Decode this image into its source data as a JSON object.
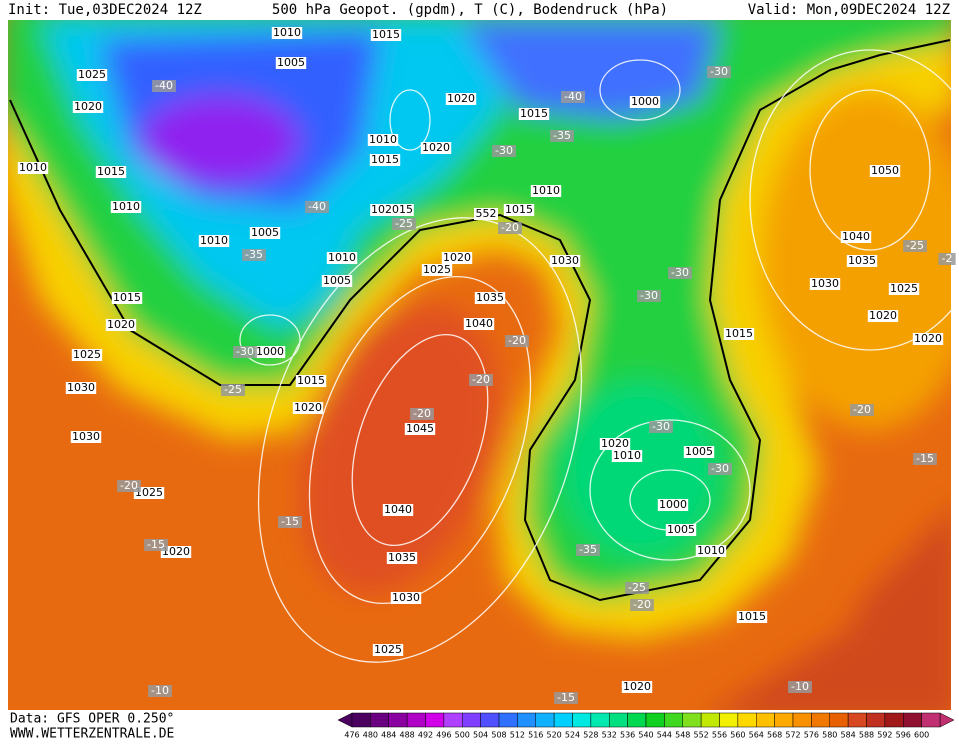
{
  "header": {
    "init": "Init: Tue,03DEC2024 12Z",
    "title": "500 hPa Geopot. (gpdm), T (C), Bodendruck (hPa)",
    "valid": "Valid: Mon,09DEC2024 12Z"
  },
  "map": {
    "pressure_labels": [
      "1010",
      "1015",
      "1005",
      "1025",
      "1020",
      "1010",
      "1015",
      "1010",
      "1010",
      "1005",
      "1015",
      "1020",
      "1025",
      "1030",
      "1030",
      "1025",
      "1020",
      "1010",
      "1015",
      "1020",
      "1020",
      "1015",
      "1000",
      "102015",
      "1010",
      "1015",
      "1020",
      "1025",
      "1010",
      "1005",
      "1030",
      "1035",
      "1040",
      "1000",
      "1015",
      "1020",
      "1045",
      "1040",
      "1035",
      "1030",
      "1025",
      "1020",
      "1015",
      "1010",
      "1005",
      "1000",
      "1005",
      "1010",
      "1020",
      "1015",
      "1030",
      "1035",
      "1040",
      "1050",
      "1025",
      "1020",
      "1020"
    ],
    "temperature_labels": [
      "-40",
      "-35",
      "-30",
      "-40",
      "-30",
      "-40",
      "-25",
      "-20",
      "-35",
      "-30",
      "-25",
      "-20",
      "-20",
      "-20",
      "-30",
      "-30",
      "-30",
      "-30",
      "-25",
      "-20",
      "-15",
      "-15",
      "-20",
      "-25",
      "-2",
      "-20",
      "-15",
      "-10",
      "-10",
      "-15",
      "-35"
    ],
    "contour_label": "552"
  },
  "colorbar": {
    "levels": [
      476,
      480,
      484,
      488,
      492,
      496,
      500,
      504,
      508,
      512,
      516,
      520,
      524,
      528,
      532,
      536,
      540,
      544,
      548,
      552,
      556,
      560,
      564,
      568,
      572,
      576,
      580,
      584,
      588,
      592,
      596,
      600
    ],
    "colors": [
      "#4b0060",
      "#6a0080",
      "#8a00a0",
      "#b000c8",
      "#d000e8",
      "#b040ff",
      "#8040ff",
      "#5050ff",
      "#3070ff",
      "#2090ff",
      "#10b0ff",
      "#00d0ff",
      "#00e8e0",
      "#00e8b0",
      "#00e080",
      "#00d850",
      "#10d020",
      "#40d820",
      "#80e020",
      "#c0e800",
      "#f0f000",
      "#ffd800",
      "#ffc000",
      "#ffa800",
      "#f89000",
      "#f07800",
      "#e86000",
      "#d84820",
      "#c03020",
      "#a01818",
      "#901030",
      "#c03070"
    ]
  },
  "footer": {
    "source": "Data: GFS OPER 0.250°",
    "site": "WWW.WETTERZENTRALE.DE"
  }
}
